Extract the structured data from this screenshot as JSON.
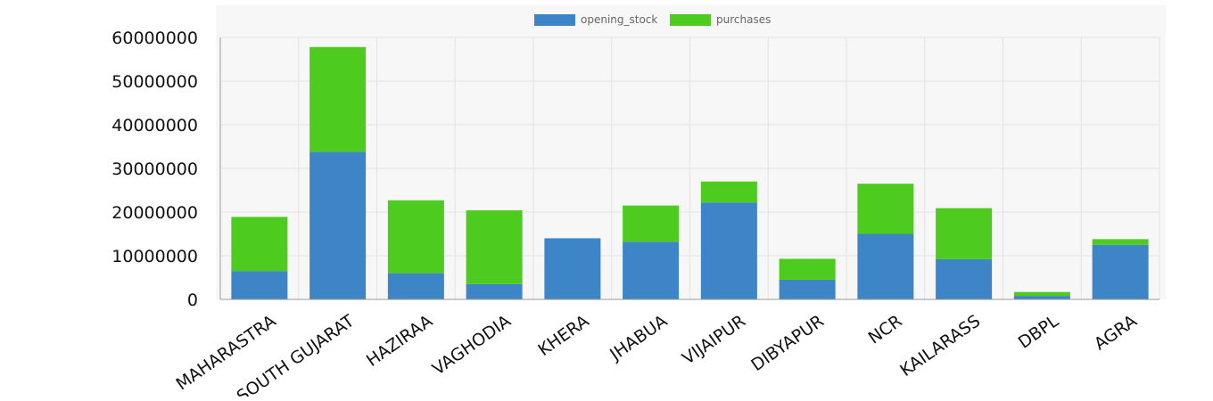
{
  "chart_data": {
    "type": "bar",
    "stacked": true,
    "categories": [
      "MAHARASTRA",
      "SOUTH GUJARAT",
      "HAZIRAA",
      "VAGHODIA",
      "KHERA",
      "JHABUA",
      "VIJAIPUR",
      "DIBYAPUR",
      "NCR",
      "KAILARASS",
      "DBPL",
      "AGRA"
    ],
    "series": [
      {
        "name": "opening_stock",
        "color": "#3d85c6",
        "values": [
          6500000,
          33800000,
          6000000,
          3500000,
          14000000,
          13200000,
          22200000,
          4500000,
          15000000,
          9200000,
          800000,
          12500000
        ]
      },
      {
        "name": "purchases",
        "color": "#4ecb1f",
        "values": [
          12400000,
          24000000,
          16700000,
          16900000,
          0,
          8300000,
          4800000,
          4800000,
          11500000,
          11700000,
          900000,
          1300000
        ]
      }
    ],
    "yticks": [
      "0",
      "10000000",
      "20000000",
      "30000000",
      "40000000",
      "50000000",
      "60000000"
    ],
    "ylim": [
      0,
      60000000
    ],
    "grid": true,
    "legend_position": "top-center",
    "title": "",
    "xlabel": "",
    "ylabel": ""
  }
}
